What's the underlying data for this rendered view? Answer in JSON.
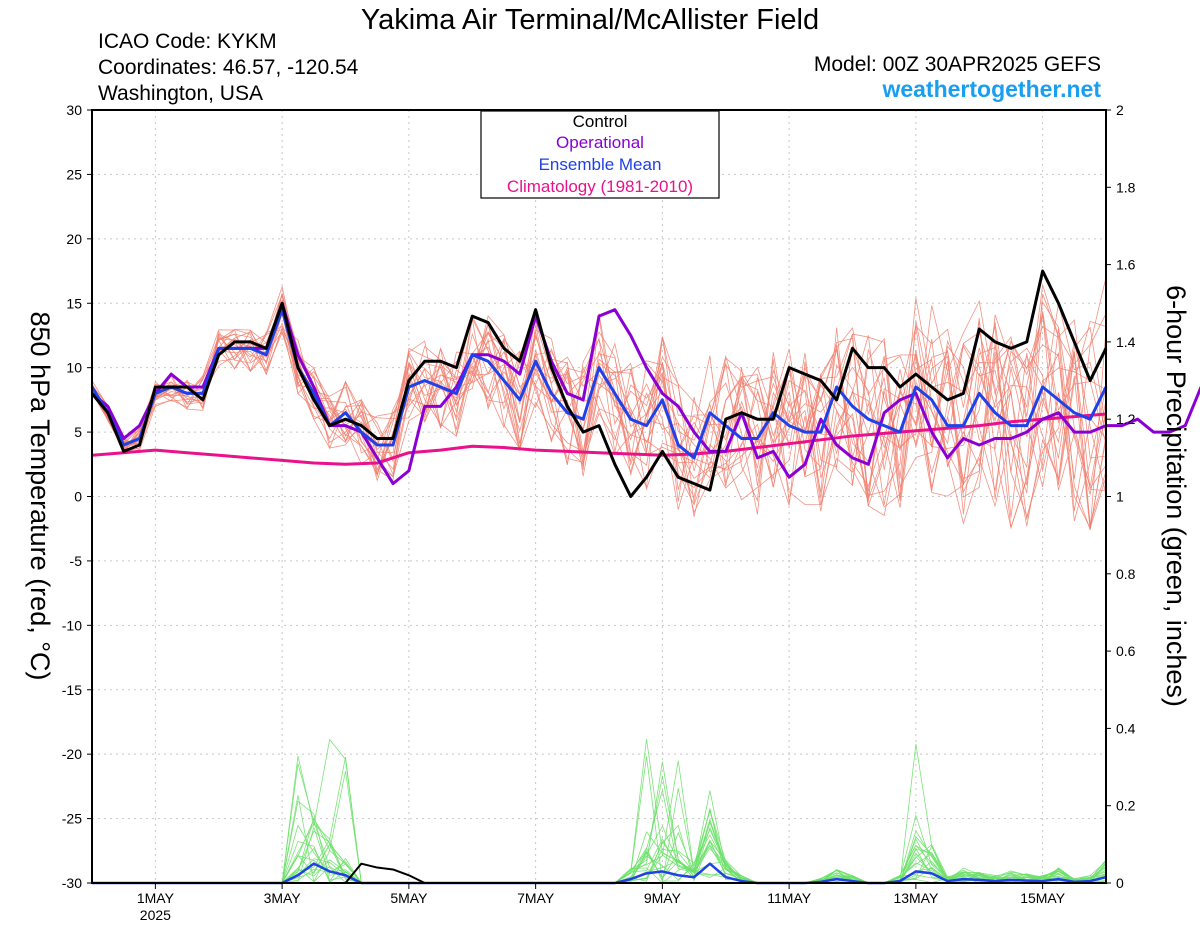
{
  "header": {
    "title": "Yakima Air Terminal/McAllister Field",
    "icao": "ICAO Code: KYKM",
    "coords": "Coordinates: 46.57, -120.54",
    "region": "Washington, USA",
    "model": "Model: 00Z 30APR2025 GEFS",
    "site": "weathertogether.net"
  },
  "colors": {
    "control": "#000000",
    "operational": "#8a00d4",
    "ensemble_mean": "#2040e8",
    "climatology": "#ea128a",
    "members": "#f08070",
    "precip_members": "#6ee06a",
    "site": "#1a9ef0",
    "grid": "#c8c8c8"
  },
  "chart_data": {
    "type": "line",
    "legend_position": "top-center",
    "legend": [
      "Control",
      "Operational",
      "Ensemble Mean",
      "Climatology (1981-2010)"
    ],
    "ylabel_left": "850 hPa Temperature (red, °C)",
    "ylabel_right": "6-hour Precipitation (green, inches)",
    "ylim_left": [
      -30,
      30
    ],
    "ylim_right": [
      0,
      2
    ],
    "y_ticks_left": [
      "30",
      "25",
      "20",
      "15",
      "10",
      "5",
      "0",
      "-5",
      "-10",
      "-15",
      "-20",
      "-25",
      "-30"
    ],
    "y_ticks_right": [
      "2",
      "1.8",
      "1.6",
      "1.4",
      "1.2",
      "1",
      "0.8",
      "0.6",
      "0.4",
      "0.2",
      "0"
    ],
    "x_tick_labels": [
      "1MAY",
      "3MAY",
      "5MAY",
      "7MAY",
      "9MAY",
      "11MAY",
      "13MAY",
      "15MAY"
    ],
    "x_tick_year": "2025",
    "x_days": [
      1.0,
      3.0,
      5.0,
      7.0,
      9.0,
      11.0,
      13.0,
      15.0
    ],
    "x_range_days": [
      -0.0,
      16.0
    ],
    "time_step_days": 0.25,
    "temperature": {
      "control": [
        8,
        6.5,
        3.5,
        4,
        8.5,
        8.5,
        8.5,
        7.5,
        11,
        12,
        12,
        11.5,
        15,
        10,
        7.5,
        5.5,
        6,
        5.5,
        4.5,
        4.5,
        9,
        10.5,
        10.5,
        10,
        14,
        13.5,
        11.5,
        10.5,
        14.5,
        10,
        7,
        5,
        5.5,
        2.5,
        0,
        1.5,
        3.5,
        1.5,
        1,
        0.5,
        6,
        6.5,
        6,
        6,
        10,
        9.5,
        9,
        7.5,
        11.5,
        10,
        10,
        8.5,
        9.5,
        8.5,
        7.5,
        8,
        13,
        12,
        11.5,
        12,
        17.5,
        15,
        12,
        9,
        11.5
      ],
      "operational": [
        8,
        7,
        4.5,
        5.5,
        8,
        9.5,
        8.5,
        8.5,
        11.5,
        11.5,
        11.5,
        11.5,
        15,
        11,
        8.5,
        5.5,
        5.5,
        5,
        3,
        1,
        2,
        7,
        7,
        8.5,
        11,
        11,
        10.5,
        9.5,
        14,
        10.5,
        8,
        7.5,
        14,
        14.5,
        12.5,
        10,
        8,
        7,
        5,
        3.5,
        3.5,
        6.5,
        3,
        3.5,
        1.5,
        2.5,
        6,
        4,
        3,
        2.5,
        6.5,
        7.5,
        8,
        5,
        3,
        4.5,
        4,
        4.5,
        4.5,
        5,
        6,
        6.5,
        5,
        5,
        5.5,
        5.5,
        6,
        5,
        5,
        5.5,
        8.5
      ],
      "ensemble_mean": [
        8.5,
        6.5,
        4,
        4.5,
        8,
        8.5,
        8,
        8,
        11.5,
        11.5,
        11.5,
        11,
        14.5,
        10,
        8,
        5.5,
        6.5,
        5,
        4,
        4,
        8.5,
        9,
        8.5,
        8,
        11,
        10.5,
        9,
        7.5,
        10.5,
        8,
        6.5,
        6,
        10,
        8,
        6,
        5.5,
        7.5,
        4,
        3,
        6.5,
        5.5,
        4.5,
        4.5,
        6.5,
        5.5,
        5,
        5,
        8.5,
        7,
        6,
        5.5,
        5,
        8.5,
        7.5,
        5.5,
        5.5,
        8,
        6.5,
        5.5,
        5.5,
        8.5,
        7.5,
        6.5,
        6,
        8.5
      ],
      "climatology": [
        3.2,
        3.4,
        3.6,
        3.4,
        3.2,
        3.0,
        2.8,
        2.6,
        2.5,
        2.6,
        3.4,
        3.6,
        3.9,
        3.8,
        3.6,
        3.5,
        3.4,
        3.3,
        3.2,
        3.3,
        3.5,
        3.8,
        4.1,
        4.4,
        4.7,
        4.9,
        5.1,
        5.3,
        5.5,
        5.8,
        6.0,
        6.2,
        6.4
      ]
    },
    "precip": {
      "control": [
        0,
        0,
        0,
        0,
        0,
        0,
        0,
        0,
        0,
        0,
        0,
        0,
        0,
        0,
        0,
        0,
        0,
        0.05,
        0.04,
        0.035,
        0.02,
        0,
        0,
        0,
        0,
        0,
        0,
        0,
        0,
        0,
        0,
        0,
        0,
        0,
        0,
        0,
        0,
        0,
        0,
        0,
        0,
        0,
        0,
        0,
        0,
        0,
        0,
        0,
        0,
        0,
        0,
        0,
        0,
        0,
        0,
        0,
        0,
        0,
        0,
        0,
        0,
        0,
        0,
        0,
        0
      ],
      "ensemble_mean": [
        0,
        0,
        0,
        0,
        0,
        0,
        0,
        0,
        0,
        0,
        0,
        0,
        0,
        0.02,
        0.05,
        0.03,
        0.02,
        0,
        0,
        0,
        0,
        0,
        0,
        0,
        0,
        0,
        0,
        0,
        0,
        0,
        0,
        0,
        0,
        0,
        0.01,
        0.025,
        0.03,
        0.02,
        0.015,
        0.05,
        0.015,
        0.005,
        0,
        0,
        0,
        0,
        0.003,
        0.01,
        0.005,
        0,
        0,
        0.005,
        0.03,
        0.025,
        0.005,
        0.01,
        0.008,
        0.005,
        0.008,
        0.006,
        0.005,
        0.01,
        0.003,
        0.005,
        0.015
      ]
    }
  }
}
